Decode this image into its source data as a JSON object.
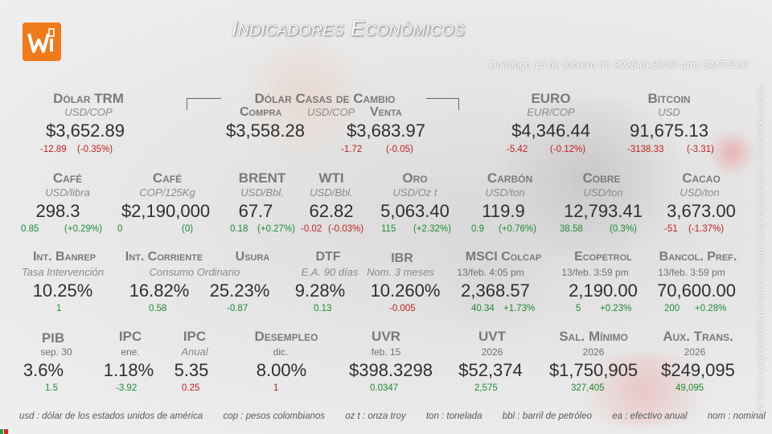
{
  "title": "Indicadores Económicos",
  "datetime": "Domingo 15 de febrero de 2026 (5:30:03 am) GMT-5:00",
  "casas_header": "Dólar Casas de Cambio",
  "row1": [
    {
      "name": "Dólar TRM",
      "unit": "USD/COP",
      "value": "$3,652.89",
      "chg": "-12.89",
      "pct": "(-0.35%)",
      "dir": "neg"
    },
    {
      "name": "Compra",
      "unit": "USD/COP",
      "value": "$3,558.28",
      "chg": "",
      "pct": "",
      "dir": "neu"
    },
    {
      "name": "Venta",
      "unit": "",
      "value": "$3,683.97",
      "chg": "-1.72",
      "pct": "(-0.05)",
      "dir": "neg"
    },
    {
      "name": "EURO",
      "unit": "EUR/COP",
      "value": "$4,346.44",
      "chg": "-5.42",
      "pct": "(-0.12%)",
      "dir": "neg"
    },
    {
      "name": "Bitcoin",
      "unit": "USD",
      "value": "91,675.13",
      "chg": "-3138.33",
      "pct": "(-3.31)",
      "dir": "neg"
    }
  ],
  "row2": [
    {
      "name": "Café",
      "unit": "USD/libra",
      "value": "298.3",
      "chg": "0.85",
      "pct": "(+0.29%)",
      "dir": "pos"
    },
    {
      "name": "Café",
      "unit": "COP/125Kg",
      "value": "$2,190,000",
      "chg": "0",
      "pct": "(0)",
      "dir": "pos"
    },
    {
      "name": "BRENT",
      "unit": "USD/Bbl.",
      "value": "67.7",
      "chg": "0.18",
      "pct": "(+0.27%)",
      "dir": "pos"
    },
    {
      "name": "WTI",
      "unit": "USD/Bbl.",
      "value": "62.82",
      "chg": "-0.02",
      "pct": "(-0.03%)",
      "dir": "neg"
    },
    {
      "name": "Oro",
      "unit": "USD/Oz t",
      "value": "5,063.40",
      "chg": "115",
      "pct": "(+2.32%)",
      "dir": "pos"
    },
    {
      "name": "Carbón",
      "unit": "USD/ton",
      "value": "119.9",
      "chg": "0.9",
      "pct": "(+0.76%)",
      "dir": "pos"
    },
    {
      "name": "Cobre",
      "unit": "USD/ton",
      "value": "12,793.41",
      "chg": "38.58",
      "pct": "(0.3%)",
      "dir": "pos"
    },
    {
      "name": "Cacao",
      "unit": "USD/ton",
      "value": "3,673.00",
      "chg": "-51",
      "pct": "(-1.37%)",
      "dir": "neg"
    }
  ],
  "row3": [
    {
      "name": "Int. Banrep",
      "unit": "Tasa Intervención",
      "value": "10.25%",
      "chg": "1",
      "pct": "",
      "dir": "pos"
    },
    {
      "name": "Int. Corriente",
      "unit": "Consumo Ordinario",
      "value": "16.82%",
      "chg": "0.58",
      "pct": "",
      "dir": "pos"
    },
    {
      "name": "Usura",
      "unit": "",
      "value": "25.23%",
      "chg": "-0.87",
      "pct": "",
      "dir": "pos"
    },
    {
      "name": "DTF",
      "unit": "E.A. 90 días",
      "value": "9.28%",
      "chg": "0.13",
      "pct": "",
      "dir": "pos"
    },
    {
      "name": "IBR",
      "unit": "Nom. 3 meses",
      "value": "10.260%",
      "chg": "-0.005",
      "pct": "",
      "dir": "neg"
    },
    {
      "name": "MSCI Colcap",
      "unit": "13/feb. 4:05 pm",
      "value": "2,368.57",
      "chg": "40.34",
      "pct": "+1.73%",
      "dir": "pos"
    },
    {
      "name": "Ecopetrol",
      "unit": "13/feb. 3:59 pm",
      "value": "2,190.00",
      "chg": "5",
      "pct": "+0.23%",
      "dir": "pos"
    },
    {
      "name": "Bancol. Pref.",
      "unit": "13/feb. 3:59 pm",
      "value": "70,600.00",
      "chg": "200",
      "pct": "+0.28%",
      "dir": "pos"
    }
  ],
  "row4": [
    {
      "name": "PIB",
      "unit": "sep. 30",
      "value": "3.6%",
      "chg": "1.5",
      "dir": "pos"
    },
    {
      "name": "IPC",
      "unit": "ene.",
      "value": "1.18%",
      "chg": "-3.92",
      "dir": "pos"
    },
    {
      "name": "IPC",
      "unit": "Anual",
      "value": "5.35",
      "chg": "0.25",
      "dir": "neg"
    },
    {
      "name": "Desempleo",
      "unit": "dic.",
      "value": "8.00%",
      "chg": "1",
      "dir": "neg"
    },
    {
      "name": "UVR",
      "unit": "feb. 15",
      "value": "$398.3298",
      "chg": "0.0347",
      "dir": "pos"
    },
    {
      "name": "UVT",
      "unit": "2026",
      "value": "$52,374",
      "chg": "2,575",
      "dir": "pos"
    },
    {
      "name": "Sal. Mínimo",
      "unit": "2026",
      "value": "$1,750,905",
      "chg": "327,405",
      "dir": "pos"
    },
    {
      "name": "Aux. Trans.",
      "unit": "2026",
      "value": "$249,095",
      "chg": "49,095",
      "dir": "pos"
    }
  ],
  "footer": [
    "usd : dólar de los estados unidos de américa",
    "cop : pesos colombianos",
    "oz t : onza troy",
    "ton : tonelada",
    "bbl : barril de petróleo",
    "ea : efectivo anual",
    "nom : nominal"
  ],
  "disclaimer": "No somos responsables por errores al proveer la información o relacionados a ésta.",
  "colors": {
    "negative": "#c0211f",
    "positive": "#1e8a34",
    "logo": "#f07a19"
  }
}
